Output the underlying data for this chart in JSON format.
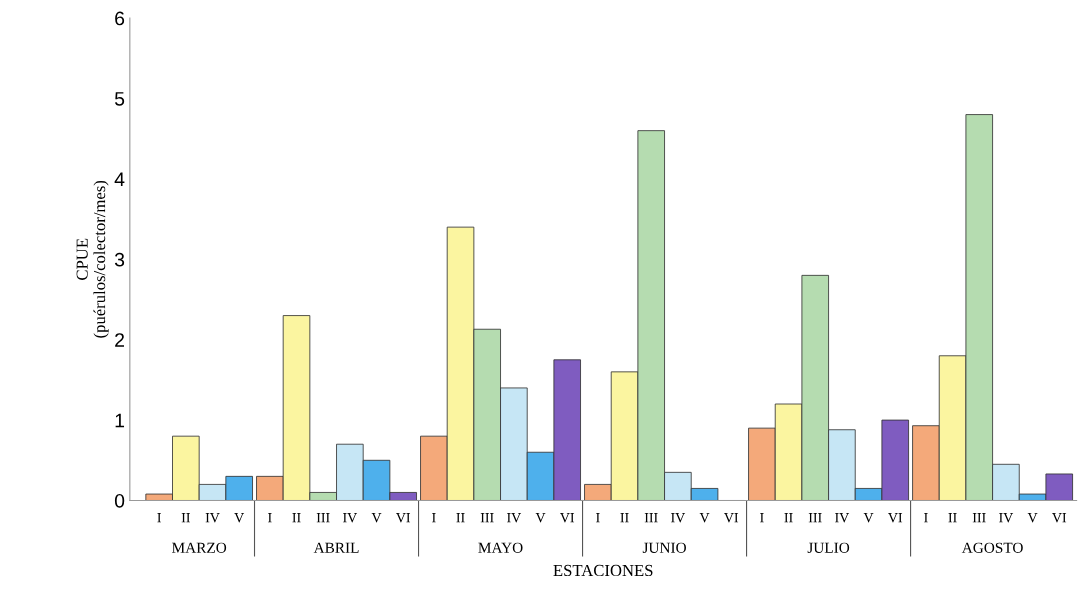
{
  "chart_data": {
    "type": "bar",
    "xlabel": "ESTACIONES",
    "ylabel": "CPUE\n(puérulos/colector/mes)",
    "categories": [
      "MARZO",
      "ABRIL",
      "MAYO",
      "JUNIO",
      "JULIO",
      "AGOSTO"
    ],
    "series": [
      {
        "name": "I",
        "color": "#f4a97a",
        "values": [
          0.08,
          0.3,
          0.8,
          0.2,
          0.9,
          0.93
        ]
      },
      {
        "name": "II",
        "color": "#fbf5a0",
        "values": [
          0.8,
          2.3,
          3.4,
          1.6,
          1.2,
          1.8
        ]
      },
      {
        "name": "III",
        "color": "#b5dcb0",
        "values": [
          null,
          0.1,
          2.13,
          4.6,
          2.8,
          4.8
        ]
      },
      {
        "name": "IV",
        "color": "#c6e6f5",
        "values": [
          0.2,
          0.7,
          1.4,
          0.35,
          0.88,
          0.45
        ]
      },
      {
        "name": "V",
        "color": "#4eb0ec",
        "values": [
          0.3,
          0.5,
          0.6,
          0.15,
          0.15,
          0.08
        ]
      },
      {
        "name": "VI",
        "color": "#7f5cc0",
        "values": [
          null,
          0.1,
          1.75,
          0,
          1.0,
          0.33
        ]
      }
    ],
    "ylim": [
      0,
      6
    ],
    "yticks": [
      0,
      1,
      2,
      3,
      4,
      5,
      6
    ],
    "grid": false,
    "legend": false
  }
}
